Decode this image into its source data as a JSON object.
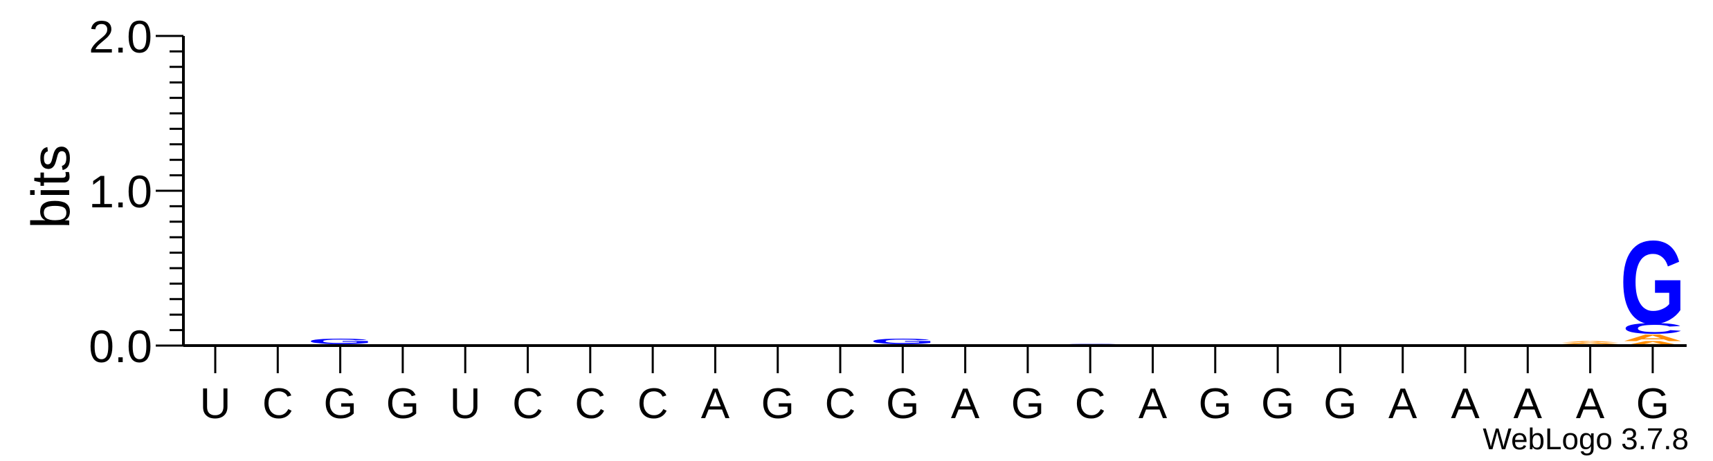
{
  "chart_data": {
    "type": "sequence-logo",
    "ylabel": "bits",
    "ylim": [
      0,
      2.0
    ],
    "yticks": [
      "0.0",
      "1.0",
      "2.0"
    ],
    "positions": [
      "U",
      "C",
      "G",
      "G",
      "U",
      "C",
      "C",
      "C",
      "A",
      "G",
      "C",
      "G",
      "A",
      "G",
      "C",
      "A",
      "G",
      "G",
      "G",
      "A",
      "A",
      "A",
      "A",
      "G"
    ],
    "colors": {
      "A": "#ff8c00",
      "C": "#0000ff",
      "G": "#0000ff",
      "U": "#ff0000"
    },
    "stacks": [
      [],
      [],
      [
        {
          "letter": "C",
          "bits": 0.012
        },
        {
          "letter": "G",
          "bits": 0.035
        }
      ],
      [],
      [],
      [],
      [],
      [],
      [],
      [
        {
          "letter": "C",
          "bits": 0.006
        }
      ],
      [],
      [
        {
          "letter": "C",
          "bits": 0.012
        },
        {
          "letter": "G",
          "bits": 0.035
        }
      ],
      [],
      [],
      [
        {
          "letter": "C",
          "bits": 0.012
        }
      ],
      [],
      [],
      [
        {
          "letter": "C",
          "bits": 0.008
        }
      ],
      [],
      [],
      [],
      [],
      [
        {
          "letter": "U",
          "bits": 0.008
        },
        {
          "letter": "A",
          "bits": 0.012
        },
        {
          "letter": "A",
          "bits": 0.01
        }
      ],
      [
        {
          "letter": "A",
          "bits": 0.03
        },
        {
          "letter": "A",
          "bits": 0.045
        },
        {
          "letter": "C",
          "bits": 0.07
        },
        {
          "letter": "G",
          "bits": 0.55
        }
      ]
    ]
  },
  "credit": "WebLogo 3.7.8"
}
